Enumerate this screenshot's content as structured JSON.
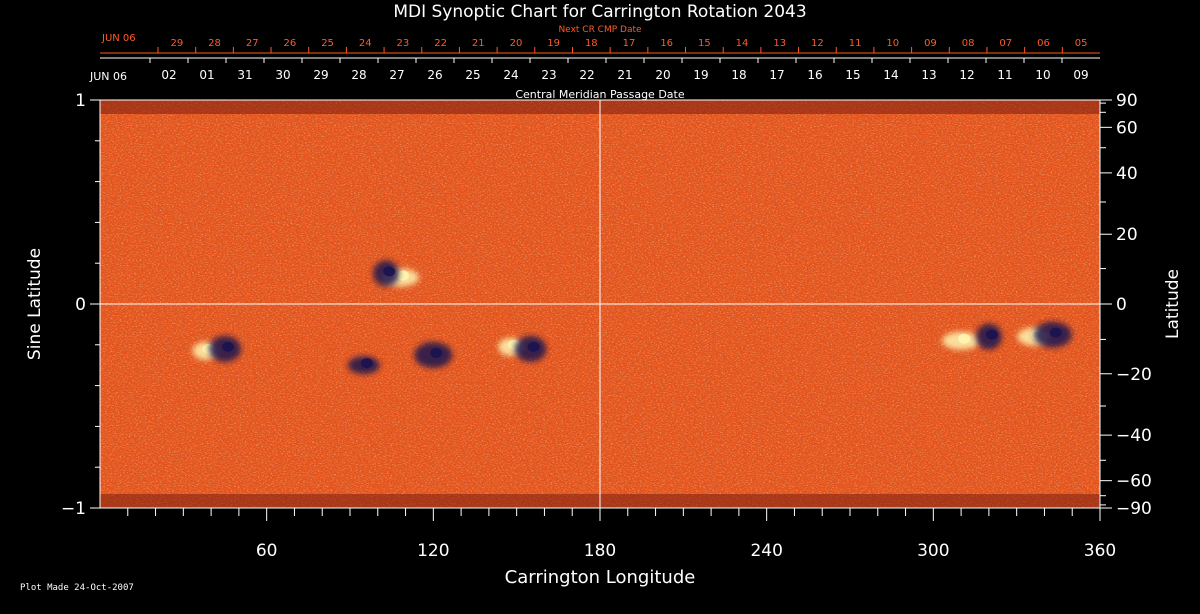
{
  "chart_data": {
    "type": "heatmap",
    "title": "MDI Synoptic Chart for Carrington Rotation 2043",
    "xlabel": "Carrington Longitude",
    "ylabel_left": "Sine Latitude",
    "ylabel_right": "Latitude",
    "xlim": [
      0,
      360
    ],
    "ylim": [
      -1,
      1
    ],
    "x_ticks": [
      60,
      120,
      180,
      240,
      300,
      360
    ],
    "y_ticks_left": [
      {
        "value": 1,
        "label": "1"
      },
      {
        "value": 0,
        "label": "0"
      },
      {
        "value": -1,
        "label": "−1"
      }
    ],
    "y_ticks_right": [
      90,
      60,
      40,
      20,
      0,
      -20,
      -40,
      -60,
      -90
    ],
    "y_ticks_right_labels": [
      "90",
      "60",
      "40",
      "20",
      "0",
      "−20",
      "−40",
      "−60",
      "−90"
    ],
    "top_axis_label": "Central Meridian Passage Date",
    "top_axis_dates": [
      "02",
      "01",
      "31",
      "30",
      "29",
      "28",
      "27",
      "26",
      "25",
      "24",
      "23",
      "22",
      "21",
      "20",
      "19",
      "18",
      "17",
      "16",
      "15",
      "14",
      "13",
      "12",
      "11",
      "10",
      "09"
    ],
    "top_axis_start": "JUN 06",
    "next_cr_label": "Next CR CMP Date",
    "next_cr_start": "JUN 06",
    "next_cr_dates": [
      "29",
      "28",
      "27",
      "26",
      "25",
      "24",
      "23",
      "22",
      "21",
      "20",
      "19",
      "18",
      "17",
      "16",
      "15",
      "14",
      "13",
      "12",
      "11",
      "10",
      "09",
      "08",
      "07",
      "06",
      "05"
    ],
    "colors": {
      "background_field": "#e5531a",
      "positive_polarity": "#fff4b0",
      "negative_polarity": "#1a1450",
      "date_red": "#ff5a28",
      "axis": "#ffffff"
    },
    "active_regions": [
      {
        "lon": 38,
        "lat_sine": -0.23,
        "polarity": "positive"
      },
      {
        "lon": 45,
        "lat_sine": -0.22,
        "polarity": "negative"
      },
      {
        "lon": 108,
        "lat_sine": 0.13,
        "polarity": "positive"
      },
      {
        "lon": 103,
        "lat_sine": 0.15,
        "polarity": "negative"
      },
      {
        "lon": 95,
        "lat_sine": -0.3,
        "polarity": "negative"
      },
      {
        "lon": 120,
        "lat_sine": -0.25,
        "polarity": "negative"
      },
      {
        "lon": 148,
        "lat_sine": -0.21,
        "polarity": "positive"
      },
      {
        "lon": 155,
        "lat_sine": -0.22,
        "polarity": "negative"
      },
      {
        "lon": 310,
        "lat_sine": -0.18,
        "polarity": "positive"
      },
      {
        "lon": 320,
        "lat_sine": -0.16,
        "polarity": "negative"
      },
      {
        "lon": 336,
        "lat_sine": -0.16,
        "polarity": "positive"
      },
      {
        "lon": 343,
        "lat_sine": -0.15,
        "polarity": "negative"
      }
    ]
  },
  "footer": {
    "plot_made": "Plot Made 24-Oct-2007"
  }
}
